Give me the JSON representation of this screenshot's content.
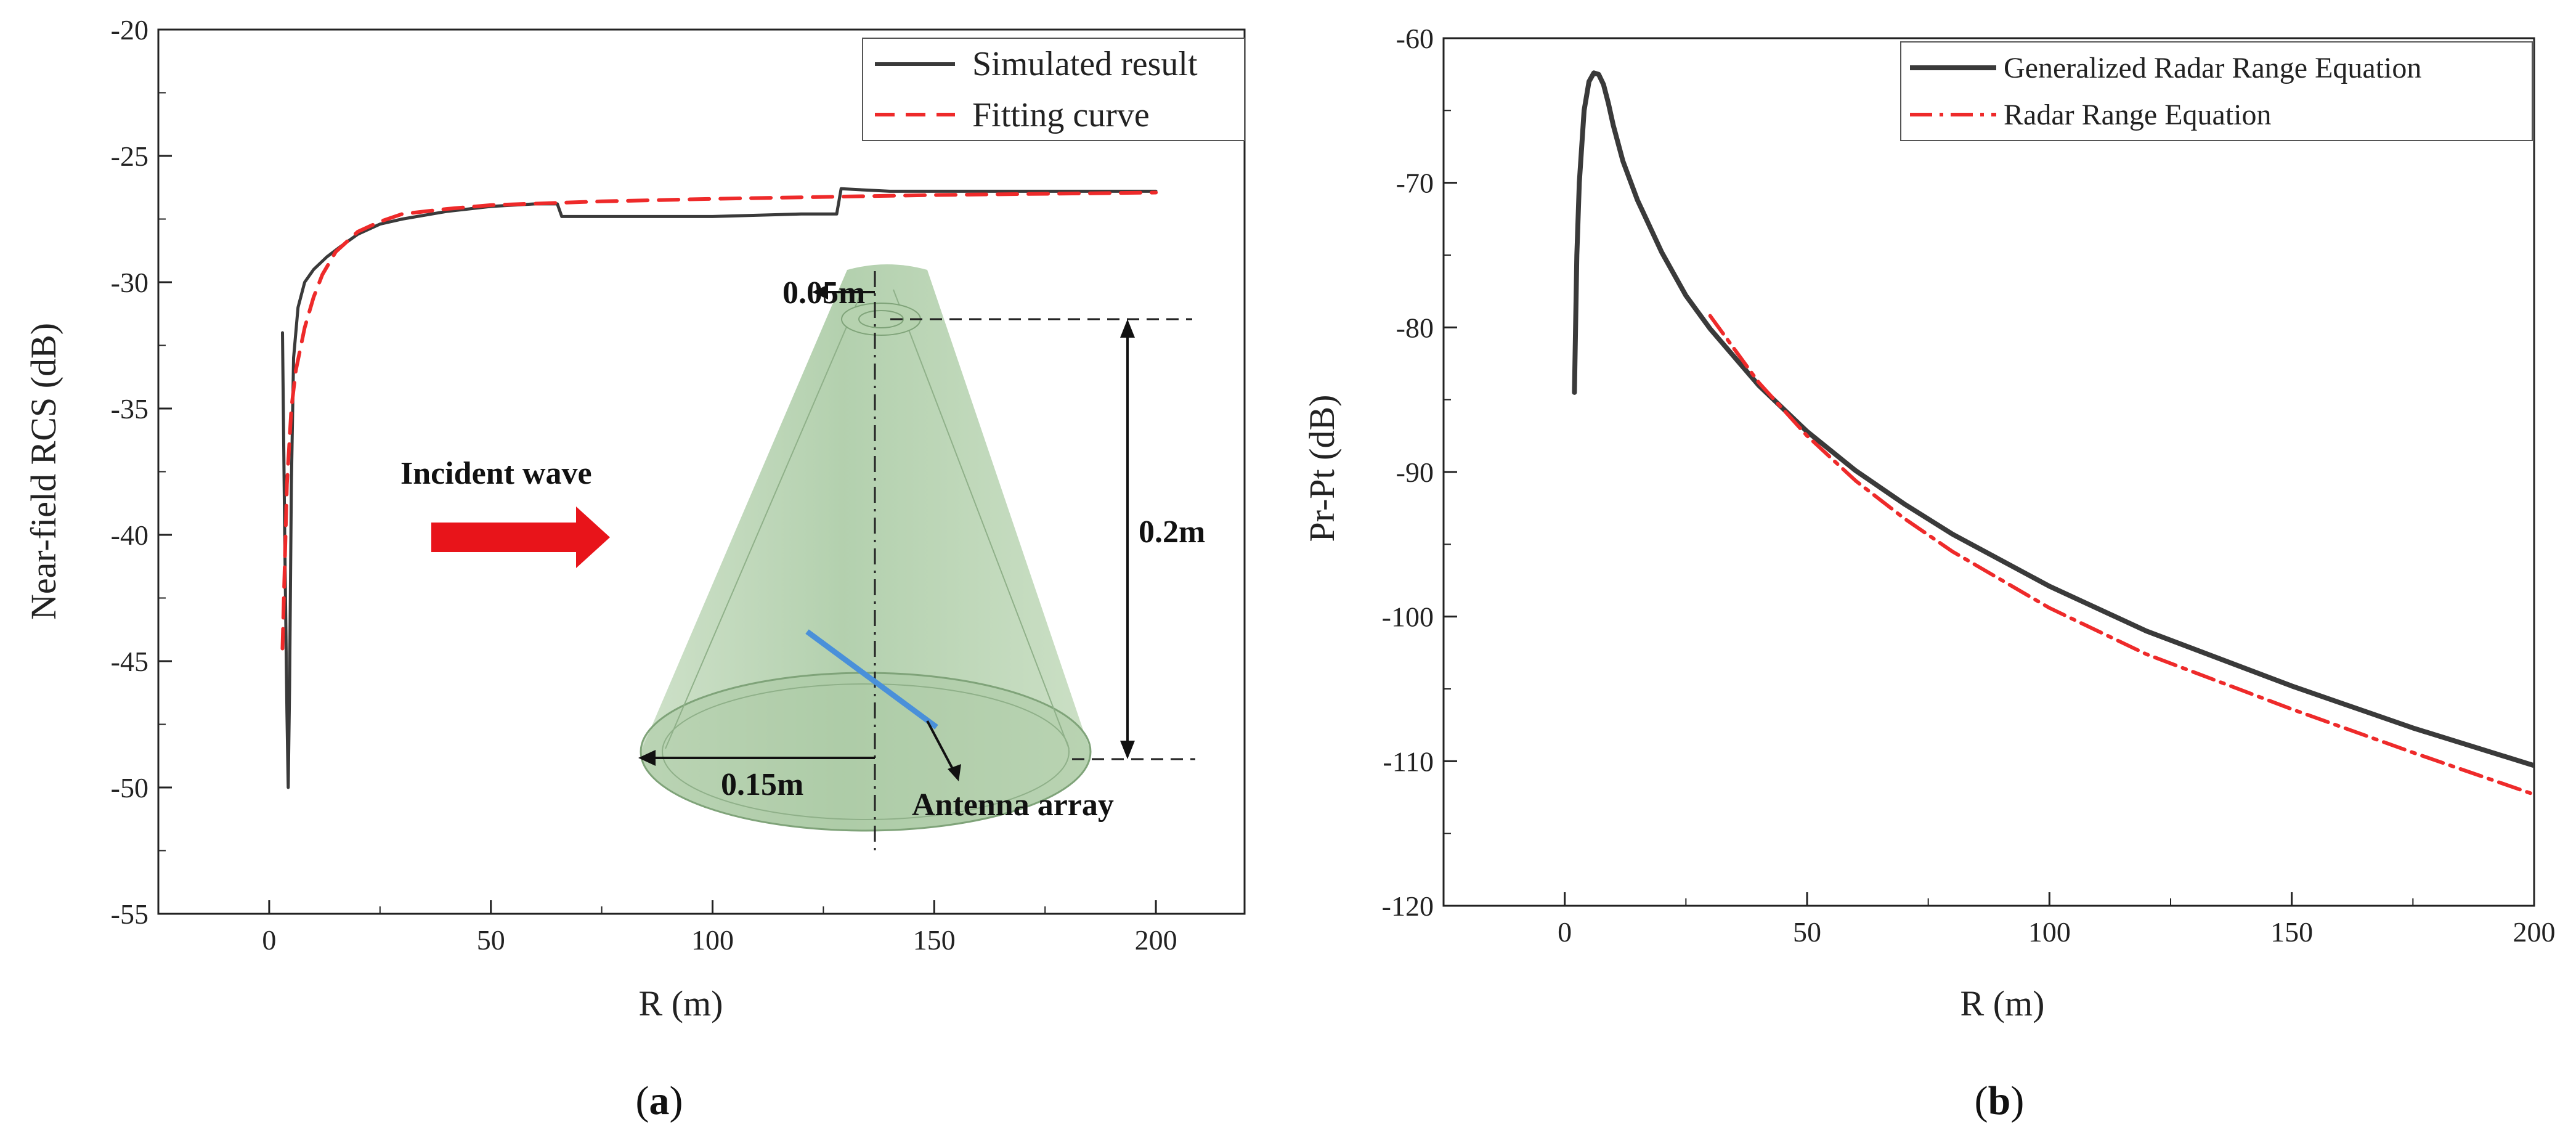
{
  "chart_data": [
    {
      "id": "a",
      "type": "line",
      "panel_label": "a",
      "xlabel": "R (m)",
      "ylabel": "Near-field RCS (dB)",
      "xlim": [
        -25,
        220
      ],
      "ylim": [
        -55,
        -20
      ],
      "xticks": [
        0,
        50,
        100,
        150,
        200
      ],
      "yticks": [
        -20,
        -25,
        -30,
        -35,
        -40,
        -45,
        -50,
        -55
      ],
      "legend": "top-right",
      "series": [
        {
          "name": "Simulated result",
          "color": "#3a3a3a",
          "dash": "solid",
          "x": [
            3,
            3.5,
            4,
            4.3,
            4.6,
            5,
            5.5,
            6.5,
            8,
            10,
            13,
            16,
            20,
            25,
            30,
            40,
            50,
            60,
            65,
            66,
            80,
            100,
            120,
            128,
            129,
            140,
            160,
            180,
            200
          ],
          "y": [
            -32,
            -40,
            -47,
            -50,
            -46,
            -38,
            -33,
            -31,
            -30,
            -29.5,
            -29,
            -28.6,
            -28.1,
            -27.7,
            -27.5,
            -27.2,
            -27.0,
            -26.9,
            -26.9,
            -27.4,
            -27.4,
            -27.4,
            -27.3,
            -27.3,
            -26.3,
            -26.4,
            -26.4,
            -26.4,
            -26.4
          ]
        },
        {
          "name": "Fitting curve",
          "color": "#ee2a2a",
          "dash": "dashed",
          "x": [
            3,
            4,
            5,
            6,
            8,
            10,
            12,
            15,
            20,
            25,
            30,
            40,
            50,
            75,
            100,
            150,
            200
          ],
          "y": [
            -44.5,
            -38,
            -35,
            -33.5,
            -31.8,
            -30.6,
            -29.7,
            -28.8,
            -28.0,
            -27.6,
            -27.3,
            -27.1,
            -26.95,
            -26.8,
            -26.7,
            -26.55,
            -26.45
          ]
        }
      ],
      "annotations": [
        "Incident wave",
        "0.05m",
        "0.2m",
        "0.15m",
        "Antenna array"
      ]
    },
    {
      "id": "b",
      "type": "line",
      "panel_label": "b",
      "xlabel": "R (m)",
      "ylabel": "Pr-Pt (dB)",
      "xlim": [
        -25,
        200
      ],
      "ylim": [
        -120,
        -60
      ],
      "xticks": [
        0,
        50,
        100,
        150,
        200
      ],
      "yticks": [
        -60,
        -70,
        -80,
        -90,
        -100,
        -110,
        -120
      ],
      "legend": "top-right",
      "series": [
        {
          "name": "Generalized Radar Range Equation",
          "color": "#3a3a3a",
          "dash": "solid",
          "x": [
            2,
            2.5,
            3,
            4,
            5,
            6,
            7,
            8,
            9,
            10,
            12,
            15,
            20,
            25,
            30,
            40,
            50,
            60,
            70,
            80,
            100,
            120,
            150,
            175,
            200
          ],
          "y": [
            -84.5,
            -75,
            -70,
            -65,
            -63,
            -62.4,
            -62.5,
            -63.2,
            -64.5,
            -66,
            -68.5,
            -71.2,
            -74.8,
            -77.8,
            -80.1,
            -84,
            -87.2,
            -89.9,
            -92.2,
            -94.3,
            -97.9,
            -101,
            -104.8,
            -107.7,
            -110.3
          ]
        },
        {
          "name": "Radar Range Equation",
          "color": "#ee2a2a",
          "dash": "dashdot",
          "x": [
            30,
            40,
            50,
            60,
            70,
            80,
            100,
            120,
            150,
            175,
            200
          ],
          "y": [
            -79.2,
            -83.8,
            -87.5,
            -90.6,
            -93.2,
            -95.5,
            -99.4,
            -102.6,
            -106.4,
            -109.4,
            -112.3
          ]
        }
      ]
    }
  ]
}
